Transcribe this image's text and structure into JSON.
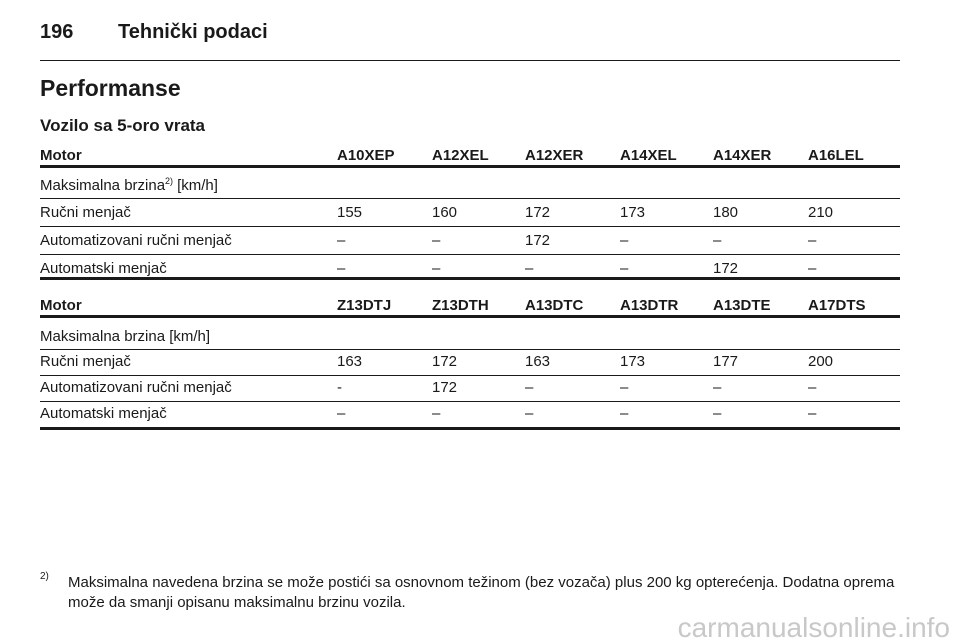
{
  "header": {
    "page_number": "196",
    "title": "Tehnički podaci"
  },
  "section_title": "Performanse",
  "subtitle": "Vozilo sa 5-oro vrata",
  "tables": [
    {
      "columns": [
        "Motor",
        "A10XEP",
        "A12XEL",
        "A12XER",
        "A14XEL",
        "A14XER",
        "A16LEL"
      ],
      "rows": [
        {
          "label": "Maksimalna brzina",
          "note": "2)",
          "unit": "[km/h]"
        },
        {
          "label": "Ručni menjač",
          "cells": [
            "155",
            "160",
            "172",
            "173",
            "180",
            "210"
          ]
        },
        {
          "label": "Automatizovani ručni menjač",
          "cells": [
            "–",
            "–",
            "172",
            "–",
            "–",
            "–"
          ]
        },
        {
          "label": "Automatski menjač",
          "cells": [
            "–",
            "–",
            "–",
            "–",
            "172",
            "–"
          ]
        }
      ]
    },
    {
      "columns": [
        "Motor",
        "Z13DTJ",
        "Z13DTH",
        "A13DTC",
        "A13DTR",
        "A13DTE",
        "A17DTS"
      ],
      "rows": [
        {
          "label": "Maksimalna brzina [km/h]"
        },
        {
          "label": "Ručni menjač",
          "cells": [
            "163",
            "172",
            "163",
            "173",
            "177",
            "200"
          ]
        },
        {
          "label": "Automatizovani ručni menjač",
          "cells": [
            "-",
            "172",
            "–",
            "–",
            "–",
            "–"
          ]
        },
        {
          "label": "Automatski menjač",
          "cells": [
            "–",
            "–",
            "–",
            "–",
            "–",
            "–"
          ]
        }
      ]
    }
  ],
  "footnote": {
    "marker": "2)",
    "text": "Maksimalna navedena brzina se može postići sa osnovnom težinom (bez vozača) plus 200 kg opterećenja. Dodatna oprema može da smanji opisanu maksimalnu brzinu vozila."
  },
  "watermark": "carmanualsonline.info"
}
